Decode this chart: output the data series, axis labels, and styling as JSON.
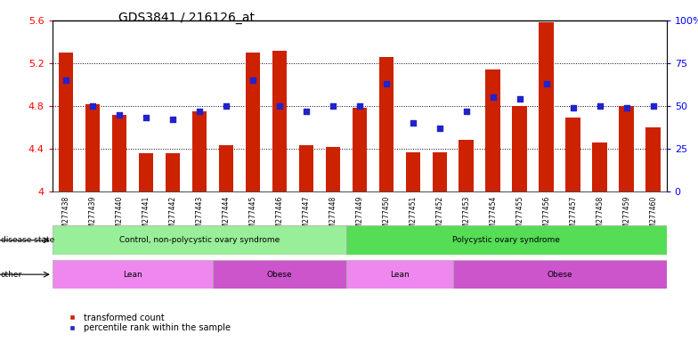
{
  "title": "GDS3841 / 216126_at",
  "samples": [
    "GSM277438",
    "GSM277439",
    "GSM277440",
    "GSM277441",
    "GSM277442",
    "GSM277443",
    "GSM277444",
    "GSM277445",
    "GSM277446",
    "GSM277447",
    "GSM277448",
    "GSM277449",
    "GSM277450",
    "GSM277451",
    "GSM277452",
    "GSM277453",
    "GSM277454",
    "GSM277455",
    "GSM277456",
    "GSM277457",
    "GSM277458",
    "GSM277459",
    "GSM277460"
  ],
  "bar_values": [
    5.3,
    4.82,
    4.72,
    4.36,
    4.36,
    4.75,
    4.43,
    5.3,
    5.32,
    4.43,
    4.42,
    4.78,
    5.26,
    4.37,
    4.37,
    4.48,
    5.14,
    4.8,
    5.58,
    4.69,
    4.46,
    4.8,
    4.6
  ],
  "dot_percentile": [
    65,
    50,
    45,
    43,
    42,
    47,
    50,
    65,
    50,
    47,
    50,
    50,
    63,
    40,
    37,
    47,
    55,
    54,
    63,
    49,
    50,
    49,
    50
  ],
  "ylim_left": [
    4.0,
    5.6
  ],
  "ylim_right": [
    0,
    100
  ],
  "yticks_left": [
    4.0,
    4.4,
    4.8,
    5.2,
    5.6
  ],
  "ytick_labels_left": [
    "4",
    "4.4",
    "4.8",
    "5.2",
    "5.6"
  ],
  "yticks_right": [
    0,
    25,
    50,
    75,
    100
  ],
  "ytick_labels_right": [
    "0",
    "25",
    "50",
    "75",
    "100%"
  ],
  "bar_color": "#cc2200",
  "dot_color": "#2222cc",
  "bar_width": 0.55,
  "disease_state_groups": [
    {
      "label": "Control, non-polycystic ovary syndrome",
      "start": 0,
      "end": 11,
      "color": "#99ee99"
    },
    {
      "label": "Polycystic ovary syndrome",
      "start": 11,
      "end": 23,
      "color": "#55dd55"
    }
  ],
  "other_groups": [
    {
      "label": "Lean",
      "start": 0,
      "end": 6,
      "color": "#ee88ee"
    },
    {
      "label": "Obese",
      "start": 6,
      "end": 11,
      "color": "#cc55cc"
    },
    {
      "label": "Lean",
      "start": 11,
      "end": 15,
      "color": "#ee88ee"
    },
    {
      "label": "Obese",
      "start": 15,
      "end": 23,
      "color": "#cc55cc"
    }
  ],
  "disease_state_label": "disease state",
  "other_label": "other",
  "bg_color": "#ffffff",
  "plot_bg_color": "#ffffff",
  "grid_dotted_color": "#000000",
  "title_fontsize": 10
}
